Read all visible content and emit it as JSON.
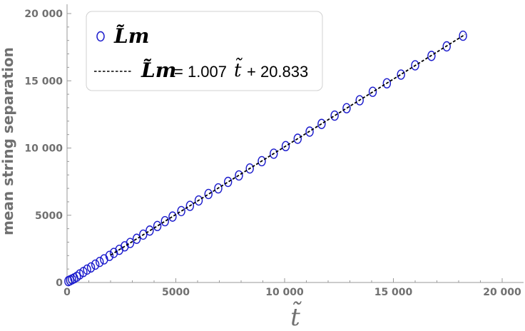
{
  "chart_data": {
    "type": "scatter",
    "xlabel": "t̃",
    "ylabel": "mean string separation",
    "xlim": [
      0,
      20000
    ],
    "ylim": [
      0,
      20000
    ],
    "x_ticks": [
      "0",
      "5000",
      "10 000",
      "15 000",
      "20 000"
    ],
    "y_ticks": [
      "0",
      "5000",
      "10 000",
      "15 000",
      "20 000"
    ],
    "x_tick_values": [
      0,
      5000,
      10000,
      15000,
      20000
    ],
    "y_tick_values": [
      0,
      5000,
      10000,
      15000,
      20000
    ],
    "grid": false,
    "legend_position": "top-left",
    "series": [
      {
        "name": "L̃m",
        "kind": "markers",
        "marker": "open-circle",
        "color": "#1a1acc",
        "x": [
          60,
          140,
          230,
          330,
          450,
          580,
          750,
          920,
          1100,
          1300,
          1500,
          1700,
          1950,
          2150,
          2400,
          2650,
          2900,
          3200,
          3500,
          3800,
          4150,
          4500,
          4850,
          5250,
          5650,
          6050,
          6500,
          6950,
          7400,
          7900,
          8400,
          8950,
          9500,
          10050,
          10600,
          11150,
          11700,
          12300,
          12850,
          13450,
          14050,
          14700,
          15350,
          16000,
          16750,
          17450,
          18200
        ],
        "y": [
          100,
          160,
          230,
          310,
          430,
          600,
          780,
          960,
          1120,
          1330,
          1530,
          1720,
          1980,
          2200,
          2430,
          2690,
          2940,
          3250,
          3560,
          3860,
          4200,
          4560,
          4900,
          5310,
          5700,
          6100,
          6580,
          7000,
          7480,
          7960,
          8480,
          9020,
          9580,
          10140,
          10690,
          11220,
          11790,
          12410,
          12960,
          13550,
          14180,
          14810,
          15460,
          16150,
          16850,
          17560,
          18350
        ]
      },
      {
        "name": "L̃m = 1.007 t̃ + 20.833",
        "kind": "line",
        "style": "dashed",
        "color": "#000000",
        "slope": 1.007,
        "intercept": 20.833,
        "x_range": [
          2000,
          18300
        ]
      }
    ]
  },
  "legend": {
    "markers_label": "L̃m",
    "line_symbol": "L̃m",
    "line_eq_1": "= 1.007",
    "line_t": "t̃",
    "line_eq_2": "+ 20.833"
  }
}
